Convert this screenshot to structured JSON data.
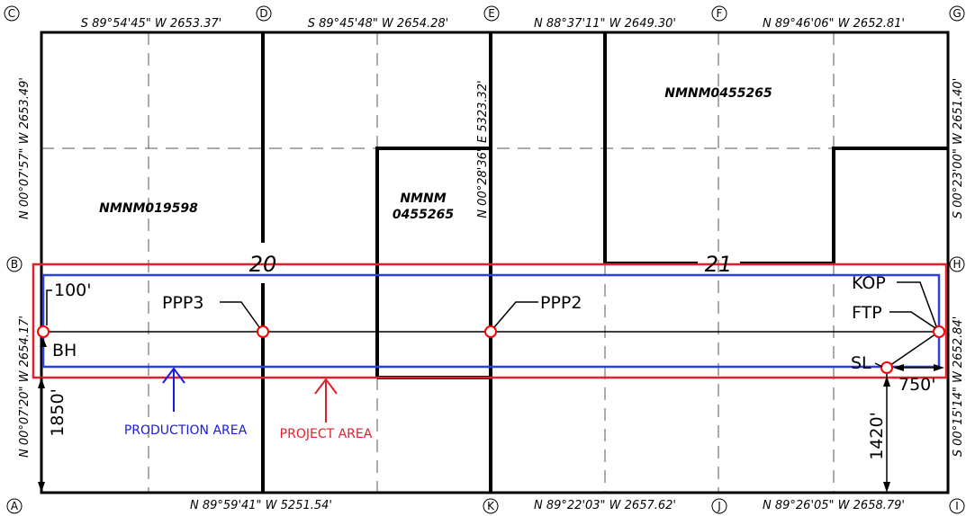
{
  "corners": {
    "c": "C",
    "d": "D",
    "e": "E",
    "f": "F",
    "g": "G",
    "b": "B",
    "h": "H",
    "a": "A",
    "k": "K",
    "j": "J",
    "i": "I"
  },
  "bearings": {
    "top_cd": "S 89°54'45\" W 2653.37'",
    "top_de": "S 89°45'48\" W 2654.28'",
    "top_ef": "N 88°37'11\" W 2649.30'",
    "top_fg": "N 89°46'06\" W 2652.81'",
    "bottom_ak": "N 89°59'41\" W 5251.54'",
    "bottom_kj": "N 89°22'03\" W 2657.62'",
    "bottom_ji": "N 89°26'05\" W 2658.79'",
    "left_upper": "N 00°07'57\" W 2653.49'",
    "left_lower": "N 00°07'20\" W 2654.17'",
    "middle": "N 00°28'36\" E 5323.32'",
    "right_upper": "S 00°23'00\" W 2651.40'",
    "right_lower": "S 00°15'14\" W 2652.84'"
  },
  "leases": {
    "l1": "NMNM019598",
    "l2_line1": "NMNM",
    "l2_line2": "0455265",
    "l3": "NMNM0455265"
  },
  "sections": {
    "s20": "20",
    "s21": "21"
  },
  "points": {
    "bh": "BH",
    "ppp3": "PPP3",
    "ppp2": "PPP2",
    "kop": "KOP",
    "ftp": "FTP",
    "sl": "SL"
  },
  "dimensions": {
    "d100": "100'",
    "d1850": "1850'",
    "d1420": "1420'",
    "d750": "750'"
  },
  "areas": {
    "production": "PRODUCTION AREA",
    "project": "PROJECT AREA"
  },
  "colors": {
    "production": "#2a3fe8",
    "project": "#e0202c",
    "line": "#000000",
    "marker": "#ff0000",
    "production_label": "#1a1ae6",
    "project_label": "#e0202c"
  }
}
